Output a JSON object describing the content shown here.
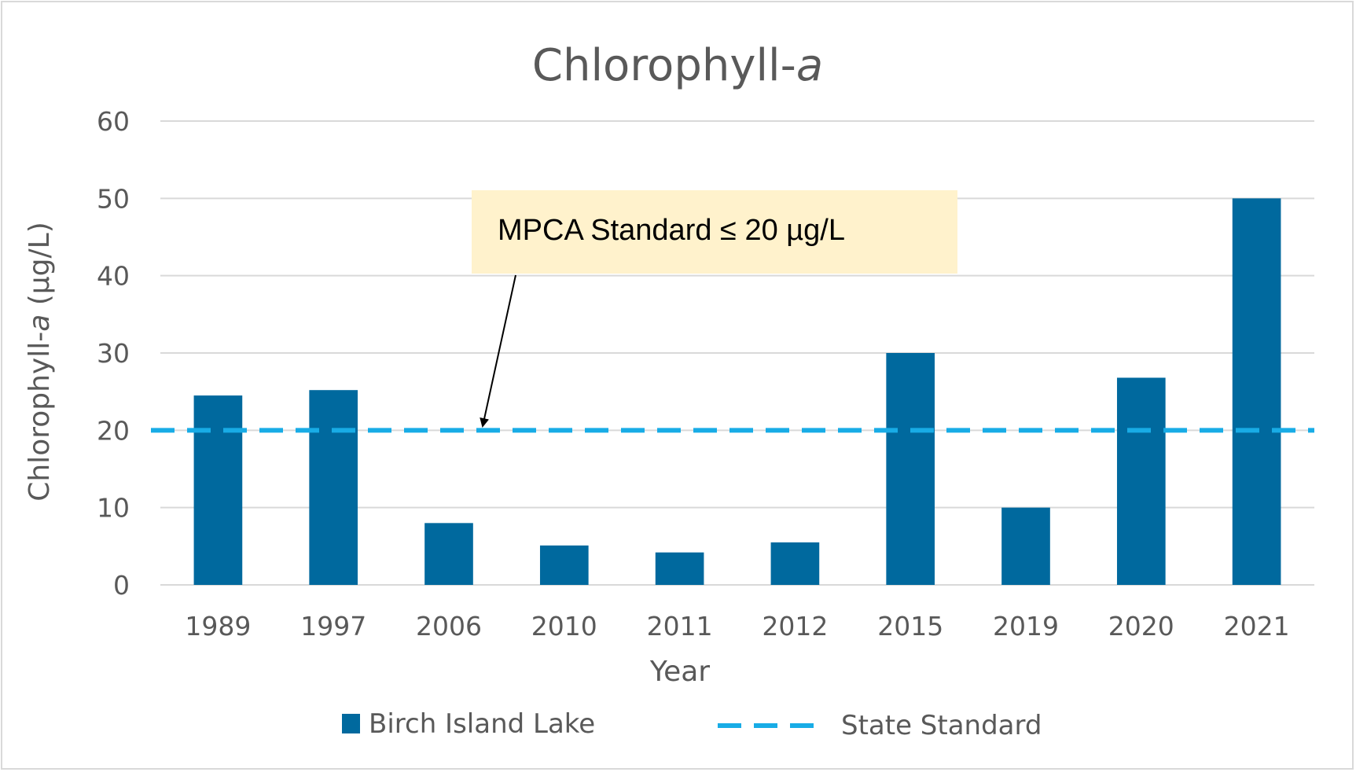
{
  "chart_data": {
    "type": "bar",
    "title": {
      "main": "Chlorophyll-",
      "italic": "a"
    },
    "xlabel": "Year",
    "ylabel": {
      "prefix": "Chlorophyll-",
      "italic": "a",
      "suffix": " (µg/L)"
    },
    "ylim": [
      0,
      60
    ],
    "yticks": [
      "0",
      "10",
      "20",
      "30",
      "40",
      "50",
      "60"
    ],
    "categories": [
      "1989",
      "1997",
      "2006",
      "2010",
      "2011",
      "2012",
      "2015",
      "2019",
      "2020",
      "2021"
    ],
    "series": [
      {
        "name": "Birch Island Lake",
        "values": [
          24.5,
          25.2,
          8.0,
          5.1,
          4.2,
          5.5,
          30.0,
          10.0,
          26.8,
          50.0
        ],
        "color": "#00699e"
      }
    ],
    "reference_line": {
      "name": "State Standard",
      "value": 20,
      "color": "#18ace6",
      "style": "dashed"
    },
    "annotation": {
      "text": "MPCA Standard  ≤ 20 µg/L",
      "background": "#fff2cc"
    },
    "grid": true,
    "legend_position": "bottom"
  }
}
